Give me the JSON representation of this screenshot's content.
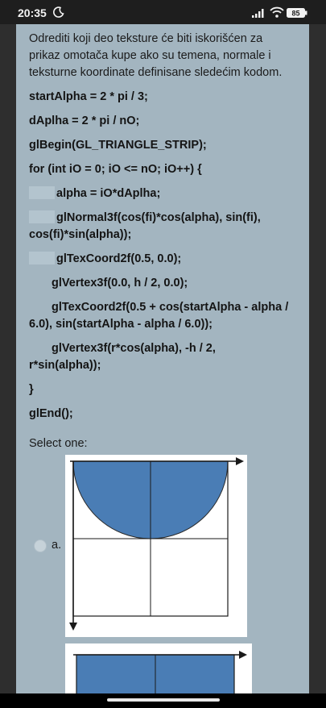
{
  "status_bar": {
    "time": "20:35",
    "battery_label": "85"
  },
  "question": {
    "prompt": "Odrediti koji deo teksture će biti iskorišćen za prikaz omotača kupe ako su temena, normale i teksturne koordinate definisane sledećim kodom.",
    "code_lines": [
      "startAlpha = 2 * pi / 3;",
      "dAplha = 2 * pi / nO;",
      "glBegin(GL_TRIANGLE_STRIP);",
      "for (int iO = 0; iO <= nO; iO++) {",
      "alpha = iO*dAplha;",
      "glNormal3f(cos(fi)*cos(alpha), sin(fi),",
      "cos(fi)*sin(alpha));",
      "glTexCoord2f(0.5, 0.0);",
      "glVertex3f(0.0, h / 2, 0.0);",
      "glTexCoord2f(0.5 + cos(startAlpha - alpha /",
      "6.0), sin(startAlpha - alpha / 6.0));",
      "glVertex3f(r*cos(alpha), -h / 2,",
      "r*sin(alpha));",
      "}",
      "glEnd();"
    ]
  },
  "answers": {
    "select_label": "Select one:",
    "options": [
      {
        "label": "a."
      }
    ]
  },
  "colors": {
    "card_bg": "#a3b5c0",
    "shape_fill": "#4a7db5"
  }
}
